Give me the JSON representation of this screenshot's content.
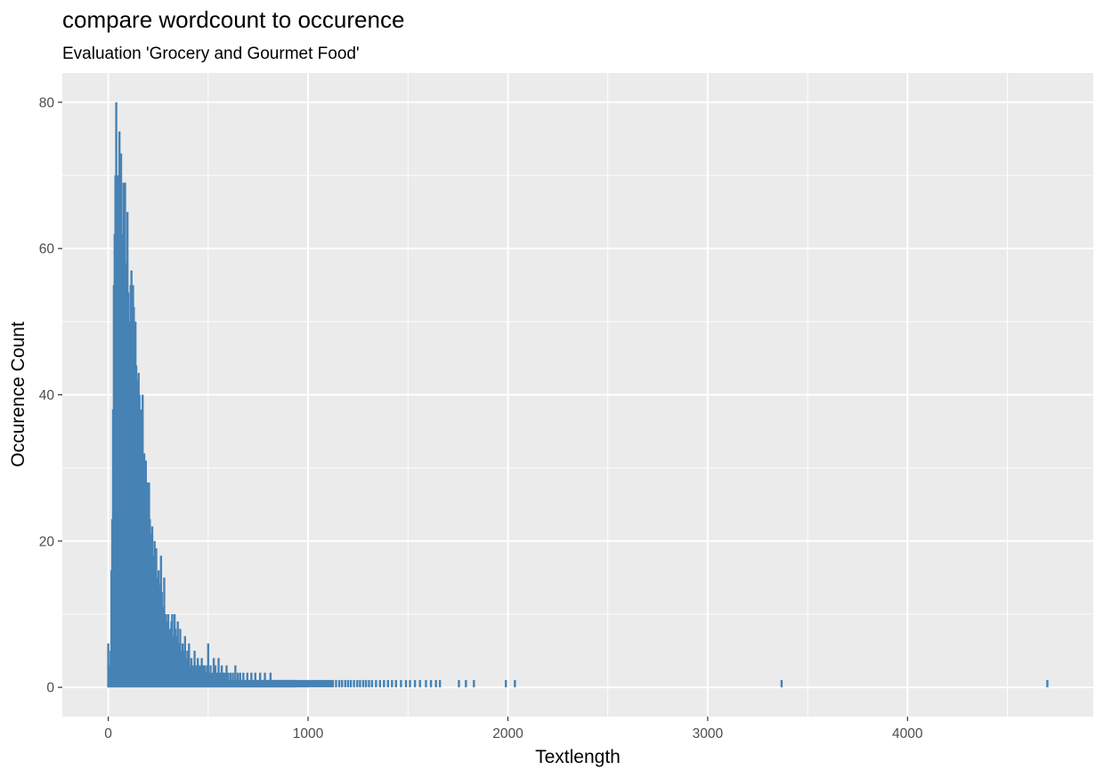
{
  "chart_data": {
    "type": "bar",
    "title": "compare wordcount to occurence",
    "subtitle": "Evaluation 'Grocery and Gourmet Food'",
    "xlabel": "Textlength",
    "ylabel": "Occurence Count",
    "xlim": [
      -230,
      4930
    ],
    "ylim": [
      -4,
      84
    ],
    "x_ticks": [
      0,
      1000,
      2000,
      3000,
      4000
    ],
    "y_ticks": [
      0,
      20,
      40,
      60,
      80
    ],
    "grid": true,
    "panel_background": "#ebebeb",
    "bar_color": "#4682b4",
    "points": [
      [
        0,
        6
      ],
      [
        4,
        1
      ],
      [
        8,
        3
      ],
      [
        12,
        5
      ],
      [
        16,
        16
      ],
      [
        20,
        23
      ],
      [
        24,
        38
      ],
      [
        28,
        55
      ],
      [
        32,
        62
      ],
      [
        36,
        70
      ],
      [
        40,
        80
      ],
      [
        44,
        64
      ],
      [
        48,
        70
      ],
      [
        52,
        66
      ],
      [
        56,
        76
      ],
      [
        60,
        60
      ],
      [
        64,
        73
      ],
      [
        68,
        60
      ],
      [
        72,
        62
      ],
      [
        76,
        69
      ],
      [
        80,
        58
      ],
      [
        84,
        69
      ],
      [
        88,
        56
      ],
      [
        92,
        58
      ],
      [
        96,
        65
      ],
      [
        100,
        54
      ],
      [
        104,
        50
      ],
      [
        108,
        48
      ],
      [
        112,
        55
      ],
      [
        116,
        57
      ],
      [
        120,
        45
      ],
      [
        124,
        55
      ],
      [
        128,
        52
      ],
      [
        132,
        45
      ],
      [
        136,
        50
      ],
      [
        140,
        44
      ],
      [
        144,
        42
      ],
      [
        148,
        40
      ],
      [
        152,
        43
      ],
      [
        156,
        40
      ],
      [
        160,
        35
      ],
      [
        164,
        38
      ],
      [
        168,
        34
      ],
      [
        172,
        40
      ],
      [
        176,
        30
      ],
      [
        180,
        32
      ],
      [
        184,
        29
      ],
      [
        188,
        31
      ],
      [
        192,
        27
      ],
      [
        196,
        28
      ],
      [
        200,
        25
      ],
      [
        204,
        28
      ],
      [
        208,
        23
      ],
      [
        212,
        21
      ],
      [
        216,
        19
      ],
      [
        220,
        22
      ],
      [
        224,
        18
      ],
      [
        228,
        17
      ],
      [
        232,
        20
      ],
      [
        236,
        16
      ],
      [
        240,
        19
      ],
      [
        244,
        14
      ],
      [
        248,
        15
      ],
      [
        252,
        16
      ],
      [
        256,
        14
      ],
      [
        260,
        12
      ],
      [
        264,
        18
      ],
      [
        268,
        13
      ],
      [
        272,
        10
      ],
      [
        276,
        11
      ],
      [
        280,
        15
      ],
      [
        284,
        9
      ],
      [
        288,
        10
      ],
      [
        292,
        8
      ],
      [
        296,
        9
      ],
      [
        300,
        10
      ],
      [
        304,
        7
      ],
      [
        308,
        8
      ],
      [
        312,
        6
      ],
      [
        316,
        9
      ],
      [
        320,
        10
      ],
      [
        324,
        7
      ],
      [
        328,
        6
      ],
      [
        332,
        10
      ],
      [
        336,
        8
      ],
      [
        340,
        5
      ],
      [
        344,
        7
      ],
      [
        348,
        9
      ],
      [
        352,
        6
      ],
      [
        356,
        4
      ],
      [
        360,
        8
      ],
      [
        364,
        5
      ],
      [
        368,
        4
      ],
      [
        372,
        6
      ],
      [
        376,
        3
      ],
      [
        380,
        5
      ],
      [
        384,
        7
      ],
      [
        388,
        4
      ],
      [
        392,
        3
      ],
      [
        396,
        5
      ],
      [
        400,
        4
      ],
      [
        404,
        6
      ],
      [
        408,
        3
      ],
      [
        412,
        2
      ],
      [
        416,
        4
      ],
      [
        420,
        3
      ],
      [
        424,
        2
      ],
      [
        428,
        3
      ],
      [
        432,
        5
      ],
      [
        436,
        2
      ],
      [
        440,
        3
      ],
      [
        444,
        2
      ],
      [
        448,
        4
      ],
      [
        452,
        3
      ],
      [
        456,
        2
      ],
      [
        460,
        3
      ],
      [
        464,
        2
      ],
      [
        468,
        4
      ],
      [
        472,
        2
      ],
      [
        476,
        3
      ],
      [
        480,
        2
      ],
      [
        484,
        3
      ],
      [
        488,
        2
      ],
      [
        492,
        1
      ],
      [
        496,
        3
      ],
      [
        500,
        6
      ],
      [
        504,
        2
      ],
      [
        508,
        1
      ],
      [
        512,
        3
      ],
      [
        516,
        2
      ],
      [
        520,
        1
      ],
      [
        524,
        2
      ],
      [
        528,
        4
      ],
      [
        532,
        2
      ],
      [
        536,
        3
      ],
      [
        540,
        2
      ],
      [
        544,
        1
      ],
      [
        548,
        2
      ],
      [
        552,
        4
      ],
      [
        556,
        2
      ],
      [
        560,
        1
      ],
      [
        564,
        2
      ],
      [
        568,
        3
      ],
      [
        572,
        1
      ],
      [
        576,
        2
      ],
      [
        580,
        1
      ],
      [
        584,
        2
      ],
      [
        588,
        1
      ],
      [
        592,
        3
      ],
      [
        596,
        1
      ],
      [
        600,
        2
      ],
      [
        604,
        1
      ],
      [
        608,
        1
      ],
      [
        612,
        2
      ],
      [
        616,
        1
      ],
      [
        620,
        1
      ],
      [
        624,
        2
      ],
      [
        628,
        1
      ],
      [
        632,
        1
      ],
      [
        636,
        3
      ],
      [
        640,
        1
      ],
      [
        644,
        1
      ],
      [
        648,
        2
      ],
      [
        652,
        1
      ],
      [
        656,
        1
      ],
      [
        660,
        2
      ],
      [
        664,
        1
      ],
      [
        668,
        1
      ],
      [
        672,
        1
      ],
      [
        676,
        2
      ],
      [
        680,
        1
      ],
      [
        684,
        1
      ],
      [
        688,
        1
      ],
      [
        692,
        1
      ],
      [
        696,
        2
      ],
      [
        700,
        1
      ],
      [
        704,
        1
      ],
      [
        708,
        1
      ],
      [
        712,
        1
      ],
      [
        716,
        2
      ],
      [
        720,
        1
      ],
      [
        724,
        1
      ],
      [
        728,
        1
      ],
      [
        732,
        1
      ],
      [
        736,
        2
      ],
      [
        740,
        1
      ],
      [
        744,
        1
      ],
      [
        748,
        1
      ],
      [
        752,
        1
      ],
      [
        756,
        1
      ],
      [
        760,
        2
      ],
      [
        764,
        1
      ],
      [
        768,
        1
      ],
      [
        772,
        1
      ],
      [
        776,
        1
      ],
      [
        780,
        1
      ],
      [
        784,
        2
      ],
      [
        788,
        1
      ],
      [
        792,
        1
      ],
      [
        796,
        1
      ],
      [
        800,
        1
      ],
      [
        804,
        1
      ],
      [
        808,
        1
      ],
      [
        812,
        2
      ],
      [
        816,
        1
      ],
      [
        820,
        1
      ],
      [
        824,
        1
      ],
      [
        828,
        1
      ],
      [
        832,
        1
      ],
      [
        836,
        1
      ],
      [
        840,
        1
      ],
      [
        844,
        1
      ],
      [
        848,
        1
      ],
      [
        852,
        1
      ],
      [
        856,
        1
      ],
      [
        860,
        1
      ],
      [
        864,
        1
      ],
      [
        868,
        1
      ],
      [
        872,
        1
      ],
      [
        876,
        1
      ],
      [
        880,
        1
      ],
      [
        884,
        1
      ],
      [
        888,
        1
      ],
      [
        892,
        1
      ],
      [
        896,
        1
      ],
      [
        900,
        1
      ],
      [
        904,
        1
      ],
      [
        908,
        1
      ],
      [
        912,
        1
      ],
      [
        916,
        1
      ],
      [
        920,
        1
      ],
      [
        924,
        1
      ],
      [
        928,
        1
      ],
      [
        932,
        1
      ],
      [
        936,
        1
      ],
      [
        940,
        1
      ],
      [
        948,
        1
      ],
      [
        956,
        1
      ],
      [
        964,
        1
      ],
      [
        972,
        1
      ],
      [
        980,
        1
      ],
      [
        988,
        1
      ],
      [
        996,
        1
      ],
      [
        1004,
        1
      ],
      [
        1012,
        1
      ],
      [
        1020,
        1
      ],
      [
        1028,
        1
      ],
      [
        1036,
        1
      ],
      [
        1044,
        1
      ],
      [
        1052,
        1
      ],
      [
        1060,
        1
      ],
      [
        1068,
        1
      ],
      [
        1076,
        1
      ],
      [
        1084,
        1
      ],
      [
        1092,
        1
      ],
      [
        1100,
        1
      ],
      [
        1108,
        1
      ],
      [
        1116,
        1
      ],
      [
        1124,
        1
      ],
      [
        1140,
        1
      ],
      [
        1156,
        1
      ],
      [
        1170,
        1
      ],
      [
        1186,
        1
      ],
      [
        1200,
        1
      ],
      [
        1214,
        1
      ],
      [
        1230,
        1
      ],
      [
        1246,
        1
      ],
      [
        1260,
        1
      ],
      [
        1276,
        1
      ],
      [
        1290,
        1
      ],
      [
        1305,
        1
      ],
      [
        1320,
        1
      ],
      [
        1340,
        1
      ],
      [
        1360,
        1
      ],
      [
        1380,
        1
      ],
      [
        1400,
        1
      ],
      [
        1420,
        1
      ],
      [
        1440,
        1
      ],
      [
        1465,
        1
      ],
      [
        1490,
        1
      ],
      [
        1510,
        1
      ],
      [
        1535,
        1
      ],
      [
        1560,
        1
      ],
      [
        1590,
        1
      ],
      [
        1615,
        1
      ],
      [
        1640,
        1
      ],
      [
        1660,
        1
      ],
      [
        1755,
        1
      ],
      [
        1790,
        1
      ],
      [
        1830,
        1
      ],
      [
        1990,
        1
      ],
      [
        2035,
        1
      ],
      [
        3370,
        1
      ],
      [
        4700,
        1
      ]
    ]
  }
}
